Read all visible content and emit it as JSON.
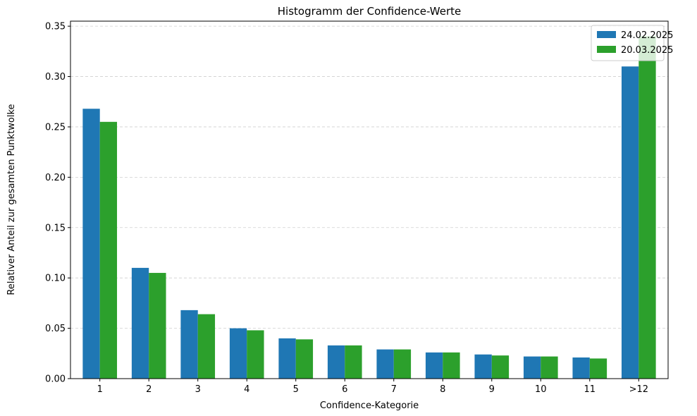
{
  "chart_data": {
    "type": "bar",
    "title": "Histogramm der Confidence-Werte",
    "xlabel": "Confidence-Kategorie",
    "ylabel": "Relativer Anteil zur gesamten Punktwolke",
    "categories": [
      "1",
      "2",
      "3",
      "4",
      "5",
      "6",
      "7",
      "8",
      "9",
      "10",
      "11",
      ">12"
    ],
    "series": [
      {
        "name": "24.02.2025",
        "color": "#1f77b4",
        "values": [
          0.268,
          0.11,
          0.068,
          0.05,
          0.04,
          0.033,
          0.029,
          0.026,
          0.024,
          0.022,
          0.021,
          0.31
        ]
      },
      {
        "name": "20.03.2025",
        "color": "#2ca02c",
        "values": [
          0.255,
          0.105,
          0.064,
          0.048,
          0.039,
          0.033,
          0.029,
          0.026,
          0.023,
          0.022,
          0.02,
          0.34
        ]
      }
    ],
    "ylim": [
      0,
      0.355
    ],
    "yticks": [
      "0.00",
      "0.05",
      "0.10",
      "0.15",
      "0.20",
      "0.25",
      "0.30",
      "0.35"
    ],
    "grid": true,
    "legend_position": "top-right"
  }
}
